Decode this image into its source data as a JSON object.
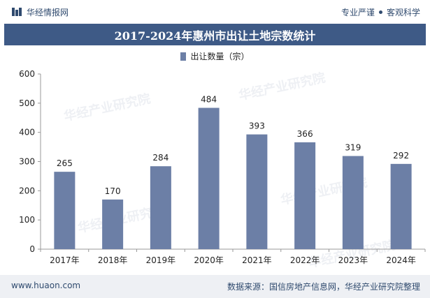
{
  "header": {
    "brand": "华经情报网",
    "tag1": "专业严谨",
    "tag2": "客观科学"
  },
  "title": "2017-2024年惠州市出让土地宗数统计",
  "footer": {
    "url": "www.huaon.com",
    "source": "数据来源：国信房地产信息网，华经产业研究院整理"
  },
  "watermark": "华经产业研究院",
  "colors": {
    "bar": "#6c7fa6",
    "title_bg": "#3e5a86"
  },
  "chart_data": {
    "type": "bar",
    "categories": [
      "2017年",
      "2018年",
      "2019年",
      "2020年",
      "2021年",
      "2022年",
      "2023年",
      "2024年"
    ],
    "series": [
      {
        "name": "出让数量（宗）",
        "values": [
          265,
          170,
          284,
          484,
          393,
          366,
          319,
          292
        ]
      }
    ],
    "ylim": [
      0,
      600
    ],
    "yticks": [
      0,
      100,
      200,
      300,
      400,
      500,
      600
    ],
    "grid": false,
    "legend": "top-center"
  }
}
